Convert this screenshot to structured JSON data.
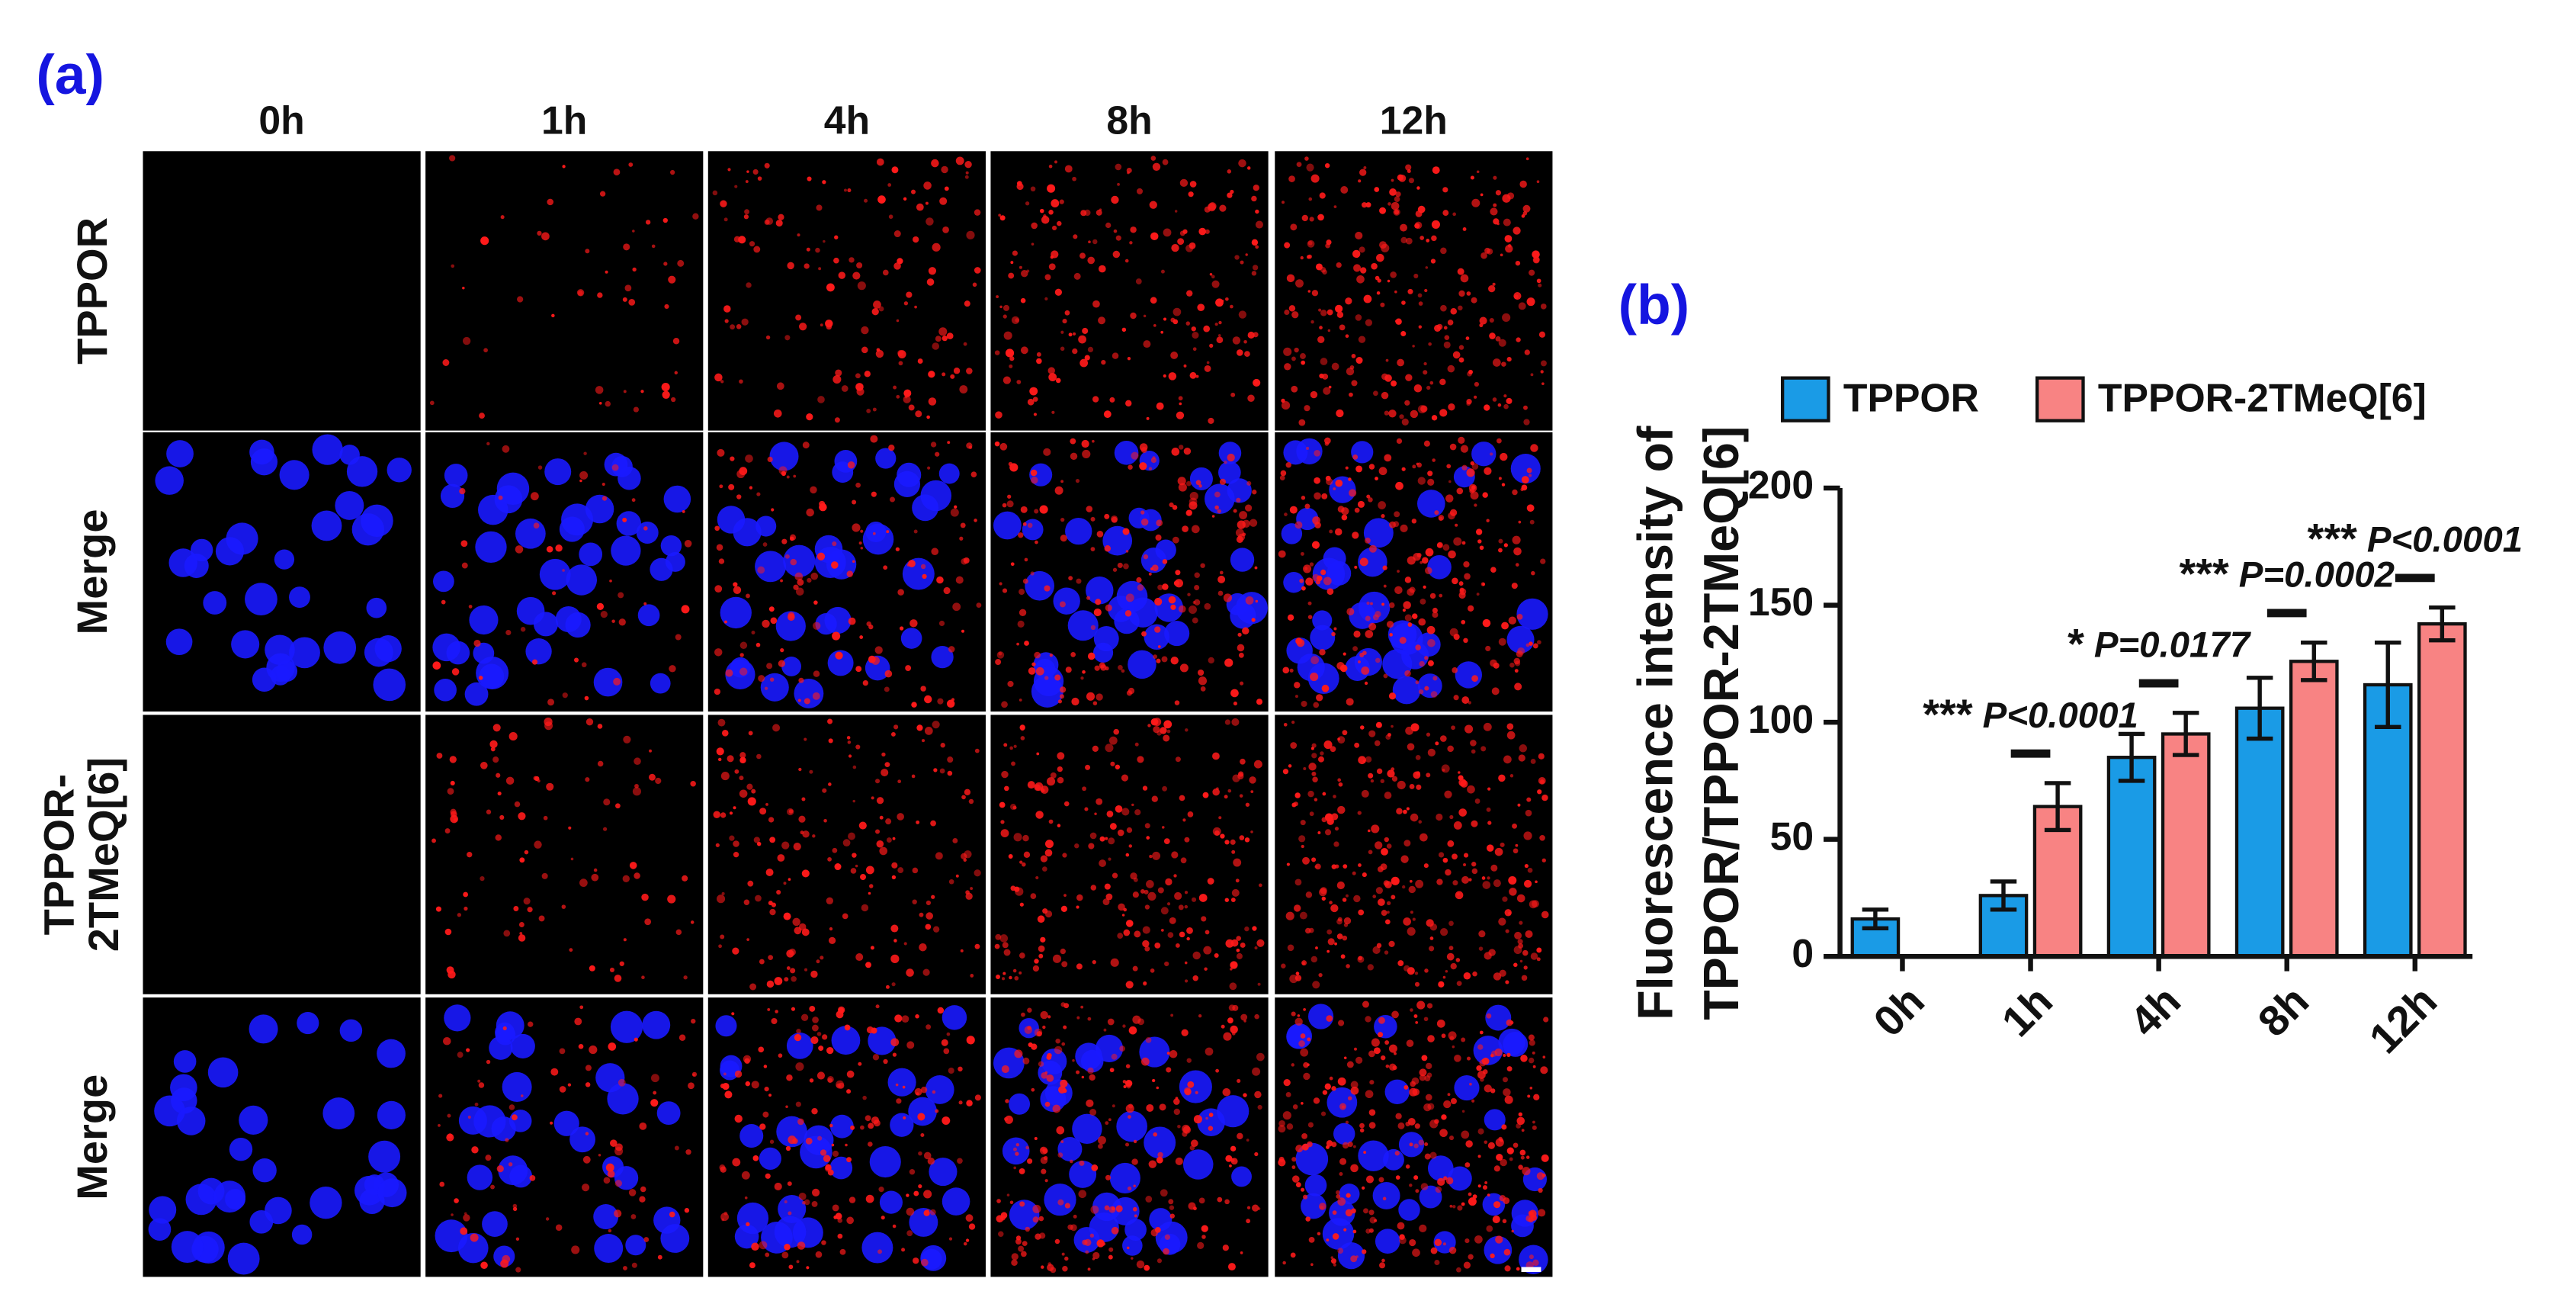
{
  "panel_a": {
    "label": "(a)",
    "columns": [
      "0h",
      "1h",
      "4h",
      "8h",
      "12h"
    ],
    "rows": [
      [
        "TPPOR"
      ],
      [
        "Merge"
      ],
      [
        "TPPOR-",
        "2TMeQ[6]"
      ],
      [
        "Merge"
      ]
    ]
  },
  "chart_data": {
    "type": "bar",
    "panel_label": "(b)",
    "ylabel": [
      "Fluorescence intensity of",
      "TPPOR/TPPOR-2TMeQ[6]"
    ],
    "categories": [
      "0h",
      "1h",
      "4h",
      "8h",
      "12h"
    ],
    "series": [
      {
        "name": "TPPOR",
        "color": "#1a9be6",
        "values": [
          16,
          26,
          85,
          106,
          116
        ],
        "errors": [
          4,
          6,
          10,
          13,
          18
        ]
      },
      {
        "name": "TPPOR-2TMeQ[6]",
        "color": "#f88383",
        "values": [
          null,
          64,
          95,
          126,
          142
        ],
        "errors": [
          null,
          10,
          9,
          8,
          7
        ]
      }
    ],
    "ylim": [
      0,
      200
    ],
    "yticks": [
      0,
      50,
      100,
      150,
      200
    ],
    "significance": [
      null,
      {
        "stars": "***",
        "p": "P<0.0001"
      },
      {
        "stars": "*",
        "p": "P=0.0177"
      },
      {
        "stars": "***",
        "p": "P=0.0002"
      },
      {
        "stars": "***",
        "p": "P<0.0001"
      }
    ]
  }
}
